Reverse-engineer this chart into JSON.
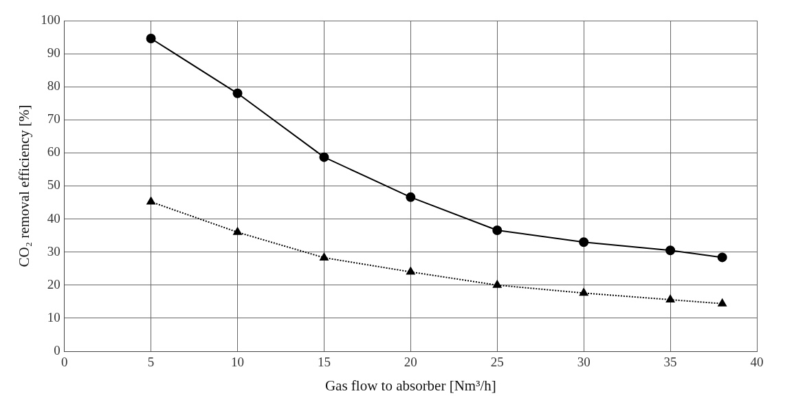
{
  "chart_data": {
    "type": "line",
    "xlabel": "Gas flow to absorber [Nm³/h]",
    "ylabel": "CO₂ removal efficiency [%]",
    "x": [
      5,
      10,
      15,
      20,
      25,
      30,
      35,
      38
    ],
    "series": [
      {
        "color": "#000000",
        "marker": "circle",
        "line_style": "solid",
        "values": [
          94.6,
          78,
          58.7,
          46.6,
          36.6,
          33,
          30.5,
          28.4
        ]
      },
      {
        "color": "#000000",
        "marker": "triangle",
        "line_style": "dotted",
        "values": [
          45.2,
          36,
          28.3,
          24,
          20,
          17.6,
          15.6,
          14.4
        ]
      }
    ],
    "xlim": [
      0,
      40
    ],
    "xticks": [
      0,
      5,
      10,
      15,
      20,
      25,
      30,
      35,
      40
    ],
    "ylim": [
      0,
      100
    ],
    "yticks": [
      0,
      10,
      20,
      30,
      40,
      50,
      60,
      70,
      80,
      90,
      100
    ],
    "grid": true,
    "legend": false
  }
}
